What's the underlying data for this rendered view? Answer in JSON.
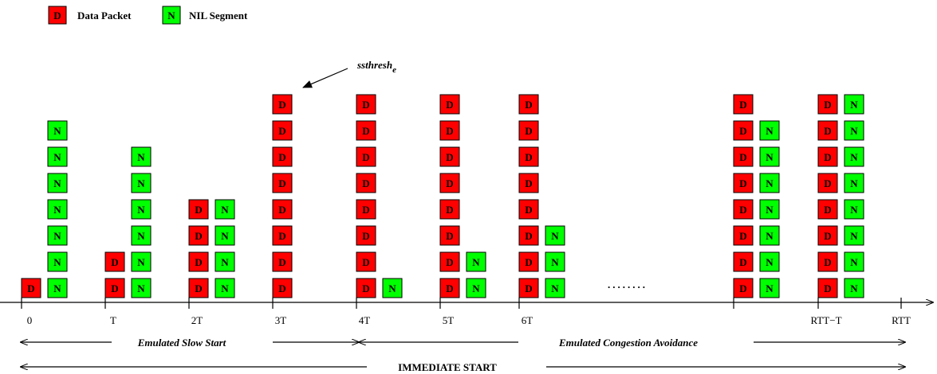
{
  "colors": {
    "data": "#ff0000",
    "nil": "#00ff00",
    "stroke": "#000000"
  },
  "legend": {
    "data_glyph": "D",
    "data_label": "Data Packet",
    "nil_glyph": "N",
    "nil_label": "NIL Segment"
  },
  "annotation": {
    "base": "ssthresh",
    "sub": "e"
  },
  "ticks": [
    "0",
    "T",
    "2T",
    "3T",
    "4T",
    "5T",
    "6T",
    "",
    "RTT−T",
    "RTT"
  ],
  "ellipsis": "........",
  "phases": {
    "slow_start": "Emulated Slow Start",
    "congestion_avoidance": "Emulated Congestion Avoidance",
    "immediate_start": "IMMEDIATE START"
  },
  "stacks": [
    {
      "data": 1,
      "nil": 7
    },
    {
      "data": 2,
      "nil": 6
    },
    {
      "data": 4,
      "nil": 4
    },
    {
      "data": 8,
      "nil": 0
    },
    {
      "data": 8,
      "nil": 1
    },
    {
      "data": 8,
      "nil": 2
    },
    {
      "data": 8,
      "nil": 3
    },
    {
      "data": 8,
      "nil": 7
    },
    {
      "data": 8,
      "nil": 8
    }
  ]
}
